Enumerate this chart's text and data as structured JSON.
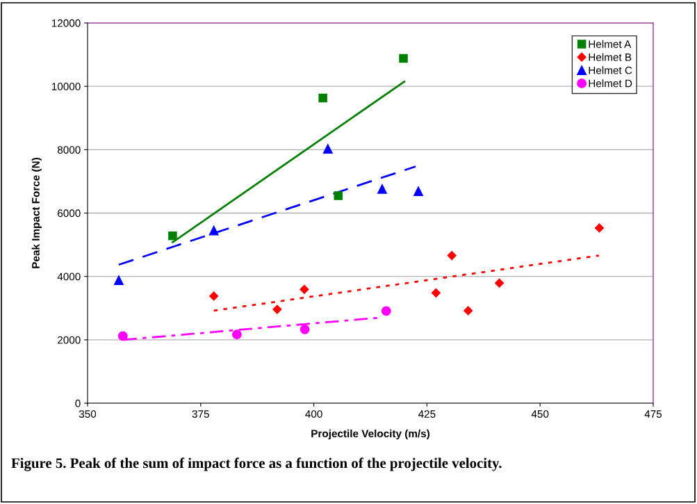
{
  "chart_data": {
    "type": "scatter",
    "xlabel": "Projectile Velocity (m/s)",
    "ylabel": "Peak Impact Force (N)",
    "xlim": [
      350,
      475
    ],
    "xticks": [
      350,
      375,
      400,
      425,
      450,
      475
    ],
    "ylim": [
      0,
      12000
    ],
    "yticks": [
      0,
      2000,
      4000,
      6000,
      8000,
      10000,
      12000
    ],
    "grid": "y",
    "legend": "top right",
    "annotations": [
      "Figure 5. Peak of the sum of impact force as a function of the projectile velocity."
    ],
    "series": [
      {
        "name": "Helmet A",
        "marker": "square",
        "color": "#008000",
        "x": [
          368.8,
          402.0,
          405.4,
          419.8
        ],
        "values": [
          5280,
          9630,
          6550,
          10880
        ]
      },
      {
        "name": "Helmet B",
        "marker": "diamond",
        "color": "#ff0000",
        "x": [
          377.9,
          391.9,
          397.9,
          427.0,
          430.5,
          434.1,
          441.0,
          463.1
        ],
        "values": [
          3380,
          2960,
          3590,
          3480,
          4660,
          2920,
          3790,
          5530
        ]
      },
      {
        "name": "Helmet C",
        "marker": "triangle",
        "color": "#0000ff",
        "x": [
          356.9,
          377.9,
          403.1,
          415.1,
          423.1
        ],
        "values": [
          3880,
          5450,
          8030,
          6760,
          6690
        ]
      },
      {
        "name": "Helmet D",
        "marker": "circle",
        "color": "#ff00ff",
        "x": [
          357.8,
          383.0,
          398.0,
          416.0
        ],
        "values": [
          2120,
          2170,
          2330,
          2910
        ]
      },
      {
        "type": "line",
        "line_style": "solid",
        "marker": "none",
        "color": "#008000",
        "x": [
          368.8,
          420.0
        ],
        "values": [
          5080,
          10150
        ]
      },
      {
        "type": "line",
        "line_style": "dotted",
        "marker": "none",
        "color": "#ff0000",
        "x": [
          377.9,
          463.0
        ],
        "values": [
          2920,
          4660
        ]
      },
      {
        "type": "line",
        "line_style": "dashed",
        "marker": "none",
        "color": "#0000ff",
        "x": [
          356.9,
          422.5
        ],
        "values": [
          4370,
          7470
        ]
      },
      {
        "type": "line",
        "line_style": "dashdot",
        "marker": "none",
        "color": "#ff00ff",
        "x": [
          357.9,
          414.6
        ],
        "values": [
          2000,
          2700
        ]
      }
    ]
  }
}
